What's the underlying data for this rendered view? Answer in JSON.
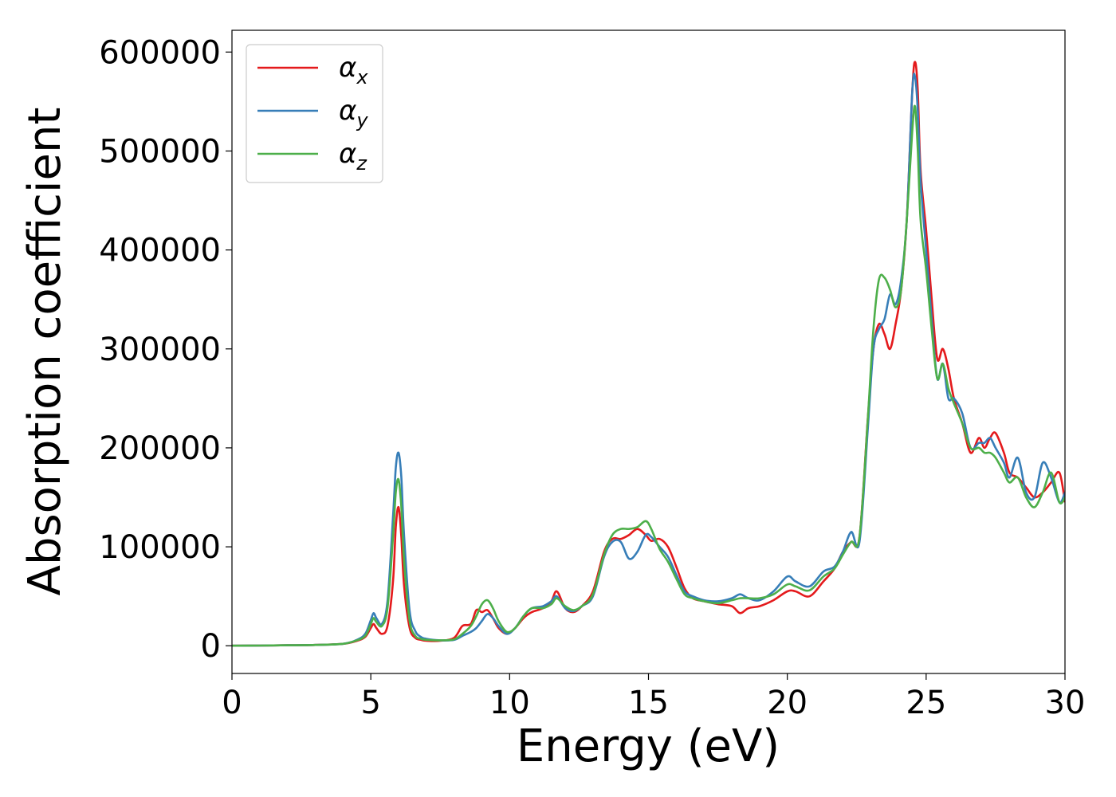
{
  "chart_data": {
    "type": "line",
    "title": "",
    "xlabel": "Energy (eV)",
    "ylabel": "Absorption coefficient",
    "xlim": [
      0,
      30
    ],
    "ylim": [
      -28000,
      622000
    ],
    "xticks": [
      0,
      5,
      10,
      15,
      20,
      25,
      30
    ],
    "xtick_labels": [
      "0",
      "5",
      "10",
      "15",
      "20",
      "25",
      "30"
    ],
    "yticks": [
      0,
      100000,
      200000,
      300000,
      400000,
      500000,
      600000
    ],
    "ytick_labels": [
      "0",
      "100000",
      "200000",
      "300000",
      "400000",
      "500000",
      "600000"
    ],
    "grid": false,
    "legend_position": "upper-left",
    "series": [
      {
        "name": "α",
        "subscript": "x",
        "color": "#e41a1c",
        "x": [
          0,
          1,
          2,
          3,
          4,
          4.5,
          4.8,
          5.0,
          5.1,
          5.2,
          5.4,
          5.6,
          5.8,
          5.9,
          6.0,
          6.1,
          6.2,
          6.4,
          6.6,
          6.8,
          7.0,
          7.5,
          8.0,
          8.3,
          8.6,
          8.8,
          9.0,
          9.2,
          9.4,
          9.6,
          9.9,
          10.2,
          10.5,
          10.8,
          11.2,
          11.5,
          11.7,
          12.0,
          12.3,
          12.6,
          13.0,
          13.4,
          13.7,
          14.0,
          14.3,
          14.6,
          14.9,
          15.1,
          15.4,
          15.7,
          16.0,
          16.3,
          16.6,
          17.0,
          17.5,
          18.0,
          18.3,
          18.6,
          19.0,
          19.5,
          20.0,
          20.3,
          20.8,
          21.3,
          21.7,
          22.0,
          22.3,
          22.6,
          22.9,
          23.1,
          23.3,
          23.5,
          23.7,
          23.9,
          24.1,
          24.3,
          24.5,
          24.6,
          24.7,
          24.8,
          25.0,
          25.2,
          25.4,
          25.6,
          25.8,
          26.0,
          26.3,
          26.6,
          26.9,
          27.1,
          27.3,
          27.5,
          27.8,
          28.0,
          28.3,
          28.6,
          28.9,
          29.2,
          29.5,
          29.8,
          30.0
        ],
        "y": [
          0,
          200,
          500,
          800,
          2000,
          5000,
          9000,
          18000,
          22000,
          18000,
          12000,
          20000,
          65000,
          120000,
          140000,
          110000,
          60000,
          18000,
          8000,
          6000,
          5000,
          5000,
          8000,
          20000,
          22000,
          36000,
          34000,
          36000,
          28000,
          18000,
          12000,
          18000,
          28000,
          34000,
          38000,
          45000,
          55000,
          38000,
          34000,
          40000,
          55000,
          95000,
          108000,
          108000,
          112000,
          118000,
          112000,
          106000,
          108000,
          100000,
          80000,
          58000,
          48000,
          45000,
          42000,
          40000,
          33000,
          38000,
          40000,
          46000,
          55000,
          55000,
          50000,
          65000,
          78000,
          95000,
          105000,
          110000,
          230000,
          300000,
          325000,
          315000,
          300000,
          325000,
          360000,
          430000,
          560000,
          590000,
          560000,
          480000,
          420000,
          350000,
          290000,
          300000,
          280000,
          250000,
          225000,
          195000,
          210000,
          200000,
          210000,
          215000,
          195000,
          175000,
          170000,
          160000,
          150000,
          155000,
          165000,
          175000,
          145000
        ]
      },
      {
        "name": "α",
        "subscript": "y",
        "color": "#377eb8",
        "x": [
          0,
          1,
          2,
          3,
          4,
          4.5,
          4.8,
          5.0,
          5.1,
          5.2,
          5.4,
          5.6,
          5.8,
          5.9,
          6.0,
          6.1,
          6.2,
          6.4,
          6.6,
          6.8,
          7.0,
          7.5,
          8.0,
          8.3,
          8.6,
          8.8,
          9.0,
          9.2,
          9.4,
          9.6,
          9.9,
          10.2,
          10.5,
          10.8,
          11.2,
          11.5,
          11.7,
          12.0,
          12.3,
          12.6,
          13.0,
          13.4,
          13.7,
          14.0,
          14.3,
          14.6,
          14.9,
          15.1,
          15.4,
          15.7,
          16.0,
          16.3,
          16.6,
          17.0,
          17.5,
          18.0,
          18.3,
          18.6,
          19.0,
          19.5,
          20.0,
          20.3,
          20.8,
          21.3,
          21.7,
          22.0,
          22.3,
          22.6,
          22.9,
          23.1,
          23.3,
          23.5,
          23.7,
          23.9,
          24.1,
          24.3,
          24.5,
          24.6,
          24.7,
          24.8,
          25.0,
          25.2,
          25.4,
          25.6,
          25.8,
          26.0,
          26.3,
          26.6,
          26.9,
          27.1,
          27.3,
          27.5,
          27.8,
          28.0,
          28.3,
          28.6,
          28.9,
          29.2,
          29.5,
          29.8,
          30.0
        ],
        "y": [
          0,
          200,
          500,
          800,
          2000,
          6000,
          12000,
          26000,
          33000,
          28000,
          22000,
          45000,
          130000,
          180000,
          195000,
          170000,
          110000,
          35000,
          15000,
          9000,
          7000,
          5500,
          6000,
          10000,
          14000,
          18000,
          25000,
          32000,
          28000,
          20000,
          12000,
          18000,
          30000,
          38000,
          40000,
          45000,
          50000,
          38000,
          35000,
          40000,
          50000,
          90000,
          105000,
          105000,
          88000,
          95000,
          112000,
          110000,
          100000,
          90000,
          72000,
          55000,
          50000,
          46000,
          45000,
          48000,
          52000,
          48000,
          46000,
          55000,
          70000,
          65000,
          60000,
          75000,
          80000,
          95000,
          115000,
          105000,
          220000,
          300000,
          320000,
          330000,
          355000,
          345000,
          370000,
          430000,
          560000,
          575000,
          540000,
          470000,
          400000,
          330000,
          270000,
          285000,
          250000,
          250000,
          235000,
          200000,
          205000,
          205000,
          210000,
          200000,
          185000,
          170000,
          190000,
          155000,
          150000,
          185000,
          170000,
          145000,
          155000
        ]
      },
      {
        "name": "α",
        "subscript": "z",
        "color": "#4daf4a",
        "x": [
          0,
          1,
          2,
          3,
          4,
          4.5,
          4.8,
          5.0,
          5.1,
          5.2,
          5.4,
          5.6,
          5.8,
          5.9,
          6.0,
          6.1,
          6.2,
          6.4,
          6.6,
          6.8,
          7.0,
          7.5,
          8.0,
          8.3,
          8.6,
          8.8,
          9.0,
          9.2,
          9.4,
          9.6,
          9.9,
          10.2,
          10.5,
          10.8,
          11.2,
          11.5,
          11.7,
          12.0,
          12.3,
          12.6,
          13.0,
          13.4,
          13.7,
          14.0,
          14.3,
          14.6,
          14.9,
          15.1,
          15.4,
          15.7,
          16.0,
          16.3,
          16.6,
          17.0,
          17.5,
          18.0,
          18.3,
          18.6,
          19.0,
          19.5,
          20.0,
          20.3,
          20.8,
          21.3,
          21.7,
          22.0,
          22.3,
          22.6,
          22.9,
          23.1,
          23.3,
          23.5,
          23.7,
          23.9,
          24.1,
          24.3,
          24.5,
          24.6,
          24.7,
          24.8,
          25.0,
          25.2,
          25.4,
          25.6,
          25.8,
          26.0,
          26.3,
          26.6,
          26.9,
          27.1,
          27.3,
          27.5,
          27.8,
          28.0,
          28.3,
          28.6,
          28.9,
          29.2,
          29.5,
          29.8,
          30.0
        ],
        "y": [
          0,
          200,
          500,
          800,
          2000,
          5500,
          10000,
          22000,
          28000,
          24000,
          20000,
          38000,
          110000,
          155000,
          168000,
          140000,
          85000,
          25000,
          10000,
          7000,
          6000,
          5500,
          6500,
          12000,
          20000,
          30000,
          42000,
          46000,
          38000,
          25000,
          14000,
          18000,
          30000,
          38000,
          38000,
          42000,
          48000,
          40000,
          36000,
          40000,
          52000,
          92000,
          112000,
          118000,
          118000,
          120000,
          126000,
          118000,
          98000,
          85000,
          68000,
          52000,
          48000,
          45000,
          43000,
          46000,
          48000,
          48000,
          48000,
          52000,
          62000,
          60000,
          56000,
          70000,
          78000,
          92000,
          105000,
          110000,
          230000,
          320000,
          370000,
          372000,
          360000,
          342000,
          360000,
          430000,
          520000,
          545000,
          500000,
          430000,
          380000,
          320000,
          270000,
          285000,
          260000,
          245000,
          225000,
          200000,
          200000,
          195000,
          195000,
          190000,
          175000,
          165000,
          170000,
          150000,
          140000,
          155000,
          175000,
          145000,
          150000
        ]
      }
    ]
  }
}
